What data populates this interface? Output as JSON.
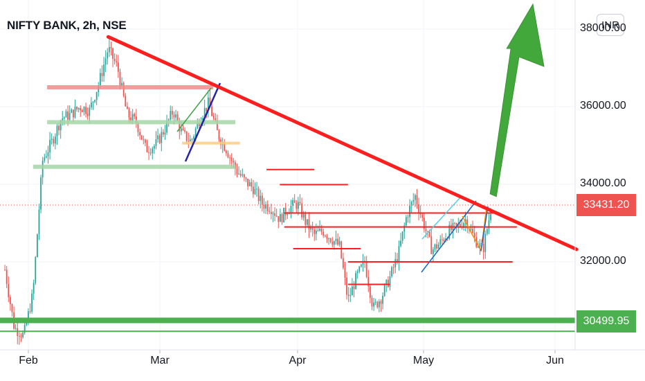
{
  "header": {
    "title": "NIFTY BANK, 2h, NSE",
    "currency_button": "INR"
  },
  "colors": {
    "trendline": "#ff1e1e",
    "support": "#4caf50",
    "arrow": "#43a83b",
    "candle_up": "#26a69a",
    "candle_down": "#ef5350",
    "price_badge": "#ef5350",
    "support_badge": "#4caf50",
    "pink_zone": "#f28b8b",
    "green_zone": "#a5d6a7",
    "orange_zone": "#ffcc80",
    "channel_navy": "#2323a8",
    "channel_green": "#43a047",
    "channel_cyan": "#4dd0e1",
    "channel_blue": "#1565c0",
    "channel_orange": "#fb8c00"
  },
  "chart_data": {
    "type": "candlestick",
    "title": "NIFTY BANK, 2h, NSE",
    "currency": "INR",
    "y_axis": {
      "ticks": [
        32000,
        34000,
        36000,
        38000
      ],
      "tick_labels": [
        "32000.00",
        "34000.00",
        "36000.00",
        "38000.00"
      ],
      "range": [
        29600,
        38800
      ]
    },
    "x_axis": {
      "ticks": [
        "Feb",
        "Mar",
        "Apr",
        "May",
        "Jun"
      ],
      "range": [
        "2021-01-27",
        "2021-06-02"
      ]
    },
    "last_price": "33431.20",
    "support_level_label": "30499.95",
    "grid": true,
    "series_path": [
      [
        "2021-01-27",
        31800
      ],
      [
        "2021-01-29",
        30300
      ],
      [
        "2021-01-31",
        30100
      ],
      [
        "2021-02-02",
        31200
      ],
      [
        "2021-02-04",
        34600
      ],
      [
        "2021-02-06",
        35100
      ],
      [
        "2021-02-08",
        35700
      ],
      [
        "2021-02-10",
        35800
      ],
      [
        "2021-02-12",
        36000
      ],
      [
        "2021-02-14",
        35900
      ],
      [
        "2021-02-16",
        36600
      ],
      [
        "2021-02-18",
        37500
      ],
      [
        "2021-02-20",
        37000
      ],
      [
        "2021-02-22",
        35800
      ],
      [
        "2021-02-24",
        35600
      ],
      [
        "2021-02-26",
        34900
      ],
      [
        "2021-02-28",
        35000
      ],
      [
        "2021-03-02",
        35400
      ],
      [
        "2021-03-04",
        35900
      ],
      [
        "2021-03-06",
        35300
      ],
      [
        "2021-03-08",
        35100
      ],
      [
        "2021-03-10",
        35700
      ],
      [
        "2021-03-12",
        36100
      ],
      [
        "2021-03-14",
        35300
      ],
      [
        "2021-03-16",
        34900
      ],
      [
        "2021-03-18",
        34400
      ],
      [
        "2021-03-20",
        34100
      ],
      [
        "2021-03-22",
        33900
      ],
      [
        "2021-03-24",
        33500
      ],
      [
        "2021-03-26",
        33400
      ],
      [
        "2021-03-28",
        33100
      ],
      [
        "2021-03-30",
        33400
      ],
      [
        "2021-04-01",
        33500
      ],
      [
        "2021-04-03",
        33000
      ],
      [
        "2021-04-05",
        32700
      ],
      [
        "2021-04-07",
        32800
      ],
      [
        "2021-04-09",
        32600
      ],
      [
        "2021-04-11",
        32400
      ],
      [
        "2021-04-13",
        31000
      ],
      [
        "2021-04-15",
        31600
      ],
      [
        "2021-04-17",
        32000
      ],
      [
        "2021-04-19",
        30800
      ],
      [
        "2021-04-21",
        31100
      ],
      [
        "2021-04-23",
        31600
      ],
      [
        "2021-04-25",
        32200
      ],
      [
        "2021-04-27",
        33200
      ],
      [
        "2021-04-29",
        33700
      ],
      [
        "2021-05-01",
        33000
      ],
      [
        "2021-05-03",
        32300
      ],
      [
        "2021-05-05",
        32500
      ],
      [
        "2021-05-07",
        32800
      ],
      [
        "2021-05-09",
        32900
      ],
      [
        "2021-05-11",
        33100
      ],
      [
        "2021-05-13",
        32600
      ],
      [
        "2021-05-15",
        32300
      ],
      [
        "2021-05-17",
        33431
      ]
    ],
    "annotations": {
      "descending_trendline": [
        [
          "2021-02-18",
          37800
        ],
        [
          "2021-06-02",
          32500
        ]
      ],
      "support_lines": [
        {
          "y": 30490,
          "x1": "2021-01-27",
          "x2": "2021-06-02",
          "width": "thick"
        },
        {
          "y": 30210,
          "x1": "2021-01-27",
          "x2": "2021-06-02",
          "width": "thin"
        }
      ],
      "resistance_lines": [
        {
          "y": 34380,
          "x1": "2021-03-25",
          "x2": "2021-04-05"
        },
        {
          "y": 33990,
          "x1": "2021-03-28",
          "x2": "2021-04-13"
        },
        {
          "y": 33260,
          "x1": "2021-03-29",
          "x2": "2021-05-19"
        },
        {
          "y": 32900,
          "x1": "2021-03-29",
          "x2": "2021-05-23"
        },
        {
          "y": 32340,
          "x1": "2021-03-31",
          "x2": "2021-04-16"
        },
        {
          "y": 32000,
          "x1": "2021-04-13",
          "x2": "2021-05-22"
        },
        {
          "y": 31420,
          "x1": "2021-04-13",
          "x2": "2021-04-23"
        }
      ],
      "zones": [
        {
          "y": 36500,
          "x1": "2021-02-05",
          "x2": "2021-03-13",
          "color": "pink"
        },
        {
          "y": 35600,
          "x1": "2021-02-05",
          "x2": "2021-03-18",
          "color": "green"
        },
        {
          "y": 35060,
          "x1": "2021-03-06",
          "x2": "2021-03-19",
          "color": "orange"
        },
        {
          "y": 34450,
          "x1": "2021-02-02",
          "x2": "2021-03-18",
          "color": "green"
        }
      ],
      "up_arrow": [
        [
          "2021-05-18",
          33700
        ],
        [
          "2021-05-28",
          38800
        ]
      ]
    }
  }
}
